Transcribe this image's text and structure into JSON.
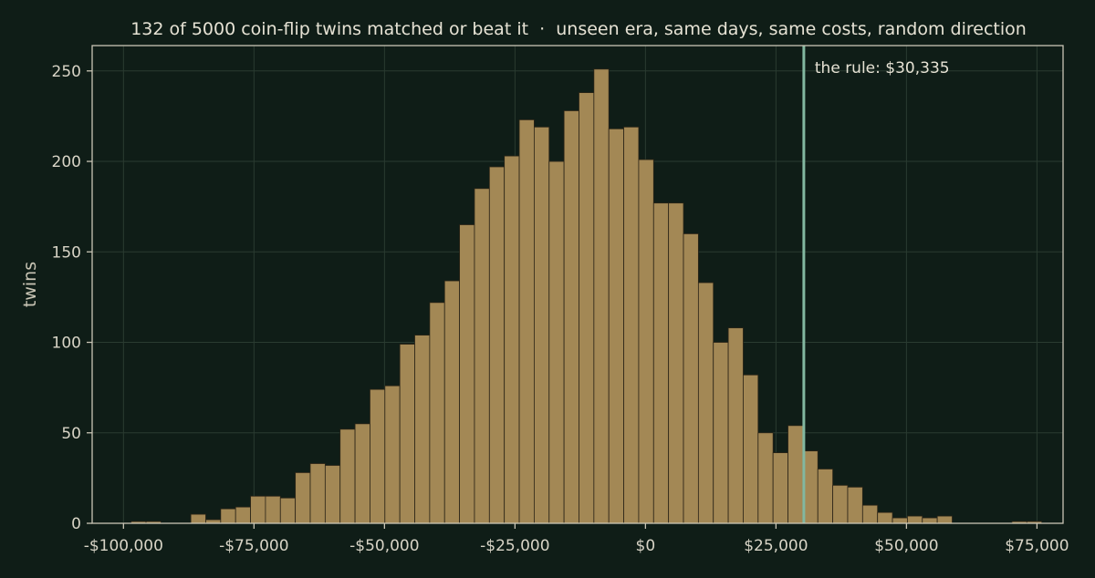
{
  "chart_data": {
    "type": "bar",
    "title": "132 of 5000 coin-flip twins matched or beat it  ·  unseen era, same days, same costs, random direction",
    "xlabel": "",
    "ylabel": "twins",
    "xlim": [
      -106000,
      80000
    ],
    "ylim": [
      0,
      264
    ],
    "x_ticks": [
      {
        "value": -100000,
        "label": "-$100,000"
      },
      {
        "value": -75000,
        "label": "-$75,000"
      },
      {
        "value": -50000,
        "label": "-$50,000"
      },
      {
        "value": -25000,
        "label": "-$25,000"
      },
      {
        "value": 0,
        "label": "$0"
      },
      {
        "value": 25000,
        "label": "$25,000"
      },
      {
        "value": 50000,
        "label": "$50,000"
      },
      {
        "value": 75000,
        "label": "$75,000"
      }
    ],
    "y_ticks": [
      {
        "value": 0,
        "label": "0"
      },
      {
        "value": 50,
        "label": "50"
      },
      {
        "value": 100,
        "label": "100"
      },
      {
        "value": 150,
        "label": "150"
      },
      {
        "value": 200,
        "label": "200"
      },
      {
        "value": 250,
        "label": "250"
      }
    ],
    "grid": true,
    "bin_start": -101400,
    "bin_width": 2860,
    "counts": [
      0,
      1,
      1,
      0,
      0,
      5,
      2,
      8,
      9,
      15,
      15,
      14,
      28,
      33,
      32,
      52,
      55,
      74,
      76,
      99,
      104,
      122,
      134,
      165,
      185,
      197,
      203,
      223,
      219,
      200,
      228,
      238,
      251,
      218,
      219,
      201,
      177,
      177,
      160,
      133,
      100,
      108,
      82,
      50,
      39,
      54,
      40,
      30,
      21,
      20,
      10,
      6,
      3,
      4,
      3,
      4,
      0,
      0,
      0,
      0,
      1,
      1,
      0
    ],
    "marker": {
      "x": 30335,
      "label": "the rule: $30,335"
    },
    "colors": {
      "background": "#0f1d17",
      "bar": "#a38855",
      "bar_edge": "#2b2417",
      "marker": "#82b8a0",
      "text": "#d8d4c6",
      "axis": "#c9c5b5",
      "grid": "#2a3b31"
    }
  }
}
